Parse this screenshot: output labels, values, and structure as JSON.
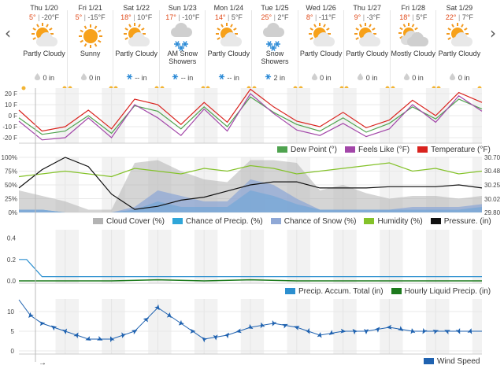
{
  "days": [
    {
      "date": "Thu 1/20",
      "hi": "5°",
      "lo": "-20°F",
      "cond": "Partly Cloudy",
      "icon": "partly-cloudy-icon",
      "precip": "0 in",
      "precip_type": "rain"
    },
    {
      "date": "Fri 1/21",
      "hi": "5°",
      "lo": "-15°F",
      "cond": "Sunny",
      "icon": "sunny-icon",
      "precip": "0 in",
      "precip_type": "rain"
    },
    {
      "date": "Sat 1/22",
      "hi": "18°",
      "lo": "10°F",
      "cond": "Partly Cloudy",
      "icon": "partly-cloudy-icon",
      "precip": "-- in",
      "precip_type": "snow"
    },
    {
      "date": "Sun 1/23",
      "hi": "17°",
      "lo": "-10°F",
      "cond": "AM Snow Showers",
      "icon": "snow-showers-icon",
      "precip": "-- in",
      "precip_type": "snow"
    },
    {
      "date": "Mon 1/24",
      "hi": "14°",
      "lo": "5°F",
      "cond": "Partly Cloudy",
      "icon": "partly-cloudy-icon",
      "precip": "-- in",
      "precip_type": "snow"
    },
    {
      "date": "Tue 1/25",
      "hi": "25°",
      "lo": "2°F",
      "cond": "Snow Showers",
      "icon": "snow-showers-icon",
      "precip": "2 in",
      "precip_type": "snow"
    },
    {
      "date": "Wed 1/26",
      "hi": "8°",
      "lo": "-11°F",
      "cond": "Partly Cloudy",
      "icon": "partly-cloudy-icon",
      "precip": "0 in",
      "precip_type": "rain"
    },
    {
      "date": "Thu 1/27",
      "hi": "9°",
      "lo": "-3°F",
      "cond": "Partly Cloudy",
      "icon": "partly-cloudy-icon",
      "precip": "0 in",
      "precip_type": "rain"
    },
    {
      "date": "Fri 1/28",
      "hi": "18°",
      "lo": "5°F",
      "cond": "Mostly Cloudy",
      "icon": "mostly-cloudy-icon",
      "precip": "0 in",
      "precip_type": "rain"
    },
    {
      "date": "Sat 1/29",
      "hi": "22°",
      "lo": "7°F",
      "cond": "Partly Cloudy",
      "icon": "partly-cloudy-icon",
      "precip": "0 in",
      "precip_type": "rain"
    }
  ],
  "nav": {
    "prev": "‹",
    "next": "›"
  },
  "colors": {
    "temperature": "#d9231e",
    "feels_like": "#a347a9",
    "dew_point": "#4fa34f",
    "cloud": "#b3b3b3",
    "precip_chance": "#2fa6d9",
    "snow_chance": "#8fa8d6",
    "humidity": "#84c22a",
    "pressure": "#111111",
    "accum": "#2c8fcf",
    "hourly_liquid": "#1d7a1d",
    "wind": "#1f62b0"
  },
  "legends": {
    "temp": [
      {
        "label": "Dew Point (°)",
        "color": "#4fa34f"
      },
      {
        "label": "Feels Like (°F)",
        "color": "#a347a9"
      },
      {
        "label": "Temperature (°F)",
        "color": "#d9231e"
      }
    ],
    "atmo": [
      {
        "label": "Cloud Cover (%)",
        "color": "#b3b3b3"
      },
      {
        "label": "Chance of Precip. (%)",
        "color": "#2fa6d9"
      },
      {
        "label": "Chance of Snow (%)",
        "color": "#8fa8d6"
      },
      {
        "label": "Humidity (%)",
        "color": "#84c22a"
      },
      {
        "label": "Pressure. (in)",
        "color": "#111111"
      }
    ],
    "precip": [
      {
        "label": "Precip. Accum. Total (in)",
        "color": "#2c8fcf"
      },
      {
        "label": "Hourly Liquid Precip. (in)",
        "color": "#1d7a1d"
      }
    ],
    "wind": [
      {
        "label": "Wind Speed",
        "color": "#1f62b0"
      }
    ]
  },
  "scroll_arrow": "→",
  "chart_data": [
    {
      "type": "line",
      "x_unit": "hour",
      "x": [
        0,
        12,
        24,
        36,
        48,
        60,
        72,
        84,
        96,
        108,
        120,
        132,
        144,
        156,
        168,
        180,
        192,
        204,
        216,
        228,
        240
      ],
      "yticks": [
        "20 F",
        "10 F",
        "0 F",
        "-10 F",
        "-20 F"
      ],
      "ylim": [
        -25,
        25
      ],
      "series": [
        {
          "name": "Temperature (°F)",
          "values": [
            5,
            -14,
            -10,
            5,
            -12,
            15,
            10,
            -8,
            12,
            -6,
            24,
            8,
            -5,
            -10,
            3,
            -11,
            -4,
            14,
            0,
            21,
            12
          ]
        },
        {
          "name": "Feels Like (°F)",
          "values": [
            -5,
            -22,
            -20,
            -2,
            -20,
            10,
            -2,
            -18,
            6,
            -14,
            20,
            2,
            -13,
            -18,
            -7,
            -19,
            -12,
            10,
            -6,
            18,
            4
          ]
        },
        {
          "name": "Dew Point (°)",
          "values": [
            -2,
            -17,
            -14,
            0,
            -16,
            9,
            4,
            -12,
            8,
            -10,
            17,
            3,
            -8,
            -14,
            -2,
            -15,
            -7,
            8,
            -3,
            15,
            6
          ]
        }
      ]
    },
    {
      "type": "line",
      "x_unit": "hour",
      "x": [
        0,
        12,
        24,
        36,
        48,
        60,
        72,
        84,
        96,
        108,
        120,
        132,
        144,
        156,
        168,
        180,
        192,
        204,
        216,
        228,
        240
      ],
      "yticks_left": [
        "100%",
        "75%",
        "50%",
        "25%",
        "0%"
      ],
      "yticks_right": [
        "30.70",
        "30.48",
        "30.25",
        "30.02",
        "29.80"
      ],
      "series": [
        {
          "name": "Cloud Cover (%)",
          "axis": "left",
          "values": [
            40,
            30,
            20,
            5,
            5,
            90,
            95,
            75,
            60,
            55,
            95,
            95,
            90,
            40,
            50,
            35,
            25,
            30,
            30,
            25,
            30
          ]
        },
        {
          "name": "Chance of Precip. (%)",
          "axis": "left",
          "values": [
            5,
            5,
            0,
            0,
            0,
            5,
            20,
            10,
            10,
            10,
            40,
            30,
            15,
            5,
            5,
            5,
            5,
            5,
            5,
            5,
            10
          ]
        },
        {
          "name": "Chance of Snow (%)",
          "axis": "left",
          "values": [
            5,
            5,
            0,
            0,
            0,
            10,
            40,
            30,
            20,
            20,
            60,
            50,
            25,
            5,
            5,
            5,
            5,
            10,
            10,
            10,
            15
          ]
        },
        {
          "name": "Humidity (%)",
          "axis": "left",
          "values": [
            65,
            70,
            75,
            70,
            65,
            80,
            75,
            70,
            80,
            75,
            85,
            80,
            70,
            75,
            80,
            85,
            90,
            75,
            80,
            70,
            75
          ]
        },
        {
          "name": "Pressure. (in)",
          "axis": "right",
          "values": [
            30.2,
            30.5,
            30.7,
            30.55,
            30.1,
            29.85,
            29.9,
            30.0,
            30.05,
            30.15,
            30.25,
            30.3,
            30.3,
            30.2,
            30.2,
            30.2,
            30.22,
            30.22,
            30.22,
            30.25,
            30.2
          ]
        }
      ]
    },
    {
      "type": "line",
      "x_unit": "hour",
      "x": [
        0,
        4,
        8,
        12,
        24,
        48,
        72,
        96,
        120,
        144,
        168,
        192,
        216,
        240
      ],
      "yticks": [
        "0.4",
        "0.2",
        "0.0"
      ],
      "ylim": [
        0,
        0.5
      ],
      "series": [
        {
          "name": "Precip. Accum. Total (in)",
          "values": [
            0.2,
            0.2,
            0.12,
            0.04,
            0.04,
            0.04,
            0.04,
            0.04,
            0.04,
            0.04,
            0.04,
            0.04,
            0.04,
            0.04
          ]
        },
        {
          "name": "Hourly Liquid Precip. (in)",
          "values": [
            0,
            0,
            0,
            0,
            0,
            0,
            0.01,
            0,
            0.01,
            0,
            0,
            0,
            0,
            0
          ]
        }
      ]
    },
    {
      "type": "line",
      "x_unit": "hour",
      "x": [
        0,
        6,
        12,
        18,
        24,
        36,
        48,
        60,
        72,
        84,
        96,
        108,
        120,
        132,
        144,
        156,
        168,
        180,
        192,
        204,
        216,
        228,
        240
      ],
      "yticks": [
        "10",
        "5",
        "0"
      ],
      "ylim": [
        0,
        14
      ],
      "series": [
        {
          "name": "Wind Speed",
          "values": [
            13,
            9,
            7,
            6,
            5,
            3,
            3,
            5,
            11,
            7,
            3,
            4,
            6,
            7,
            6,
            4,
            5,
            5,
            6,
            5,
            5,
            5,
            5
          ]
        }
      ]
    }
  ]
}
